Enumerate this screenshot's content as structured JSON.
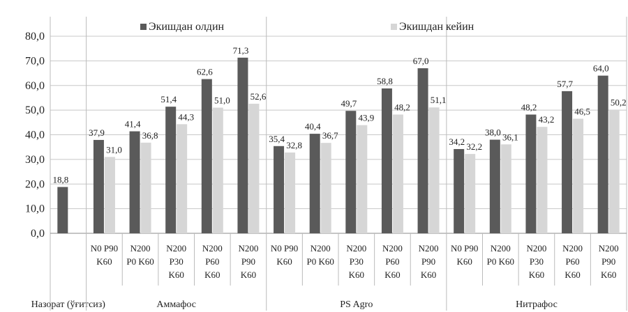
{
  "chart_data": {
    "type": "bar",
    "title": "",
    "xlabel": "",
    "ylabel": "",
    "ylim": [
      0,
      80
    ],
    "yticks": [
      "0,0",
      "10,0",
      "20,0",
      "30,0",
      "40,0",
      "50,0",
      "60,0",
      "70,0",
      "80,0"
    ],
    "grid": true,
    "legend_position": "top",
    "series": [
      {
        "name": "Экишдан олдин",
        "color": "#5a5a5a",
        "values": [
          18.8,
          37.9,
          41.4,
          51.4,
          62.6,
          71.3,
          35.4,
          40.4,
          49.7,
          58.8,
          67.0,
          34.2,
          38.0,
          48.2,
          57.7,
          64.0
        ],
        "labels": [
          "18,8",
          "37,9",
          "41,4",
          "51,4",
          "62,6",
          "71,3",
          "35,4",
          "40,4",
          "49,7",
          "58,8",
          "67,0",
          "34,2",
          "38,0",
          "48,2",
          "57,7",
          "64,0"
        ]
      },
      {
        "name": "Экишдан кейин",
        "color": "#d6d6d6",
        "values": [
          null,
          31.0,
          36.8,
          44.3,
          51.0,
          52.6,
          32.8,
          36.7,
          43.9,
          48.2,
          51.1,
          32.2,
          36.1,
          43.2,
          46.5,
          50.2
        ],
        "labels": [
          "",
          "31,0",
          "36,8",
          "44,3",
          "51,0",
          "52,6",
          "32,8",
          "36,7",
          "43,9",
          "48,2",
          "51,1",
          "32,2",
          "36,1",
          "43,2",
          "46,5",
          "50,2"
        ]
      }
    ],
    "categories": [
      [
        ""
      ],
      [
        "N0 P90",
        "K60"
      ],
      [
        "N200",
        "P0 K60"
      ],
      [
        "N200",
        "P30",
        "K60"
      ],
      [
        "N200",
        "P60",
        "K60"
      ],
      [
        "N200",
        "P90",
        "K60"
      ],
      [
        "N0 P90",
        "K60"
      ],
      [
        "N200",
        "P0 K60"
      ],
      [
        "N200",
        "P30",
        "K60"
      ],
      [
        "N200",
        "P60",
        "K60"
      ],
      [
        "N200",
        "P90",
        "K60"
      ],
      [
        "N0 P90",
        "K60"
      ],
      [
        "N200",
        "P0 K60"
      ],
      [
        "N200",
        "P30",
        "K60"
      ],
      [
        "N200",
        "P60",
        "K60"
      ],
      [
        "N200",
        "P90",
        "K60"
      ]
    ],
    "groups": [
      {
        "label": "Назорат (ўғитсиз)",
        "count": 1
      },
      {
        "label": "Аммафос",
        "count": 5
      },
      {
        "label": "PS Agro",
        "count": 5
      },
      {
        "label": "Нитрафос",
        "count": 5
      }
    ]
  }
}
